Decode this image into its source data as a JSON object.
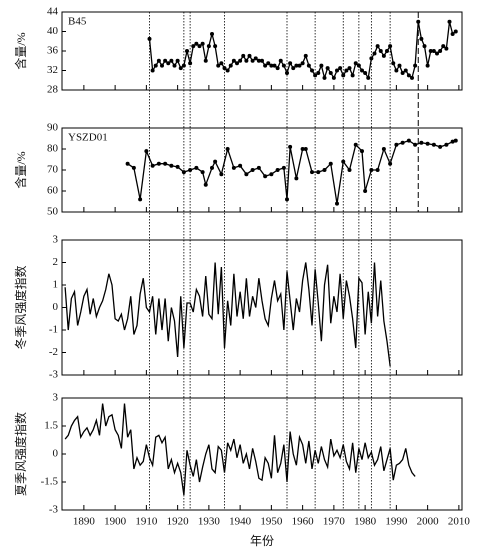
{
  "chart_data": [
    {
      "type": "line",
      "label": "B45",
      "ylabel": "含量/%",
      "markers": true,
      "color": "#000000",
      "ylim": [
        28,
        44
      ],
      "yticks": [
        28,
        32,
        36,
        40,
        44
      ],
      "xlim": [
        1883,
        2011
      ],
      "x": [
        1911,
        1912,
        1913,
        1914,
        1915,
        1916,
        1917,
        1918,
        1919,
        1920,
        1921,
        1922,
        1923,
        1924,
        1925,
        1926,
        1927,
        1928,
        1929,
        1930,
        1931,
        1932,
        1933,
        1934,
        1935,
        1936,
        1937,
        1938,
        1939,
        1940,
        1941,
        1942,
        1943,
        1944,
        1945,
        1946,
        1947,
        1948,
        1949,
        1950,
        1951,
        1952,
        1953,
        1954,
        1955,
        1956,
        1957,
        1958,
        1959,
        1960,
        1961,
        1962,
        1963,
        1964,
        1965,
        1966,
        1967,
        1968,
        1969,
        1970,
        1971,
        1972,
        1973,
        1974,
        1975,
        1976,
        1977,
        1978,
        1979,
        1980,
        1981,
        1982,
        1983,
        1984,
        1985,
        1986,
        1987,
        1988,
        1989,
        1990,
        1991,
        1992,
        1993,
        1994,
        1995,
        1996,
        1997,
        1998,
        1999,
        2000,
        2001,
        2002,
        2003,
        2004,
        2005,
        2006,
        2007,
        2008,
        2009
      ],
      "values": [
        38.5,
        32,
        33,
        34,
        33,
        34,
        33.5,
        34,
        33,
        34,
        32.5,
        33,
        36,
        33.5,
        37,
        37.5,
        37,
        37.5,
        34,
        37,
        39.5,
        37,
        33,
        33.5,
        32.5,
        32,
        33,
        34,
        33.5,
        34,
        35,
        34,
        35,
        34,
        34.5,
        34,
        34,
        33,
        33.5,
        33,
        33,
        32.5,
        34,
        33,
        31.5,
        33.5,
        32.5,
        33,
        33,
        33.5,
        35,
        33,
        32,
        31,
        31.5,
        33,
        30.5,
        32.5,
        31.5,
        30.5,
        32,
        32.5,
        31,
        32,
        32.5,
        31,
        33.5,
        33,
        32,
        31.5,
        30.5,
        34.5,
        35.5,
        37,
        36,
        35,
        36,
        37,
        33.5,
        32,
        33,
        31.5,
        32,
        31,
        30.5,
        33,
        42,
        38.5,
        37,
        33,
        36,
        36,
        35.5,
        36,
        37,
        36.5,
        42,
        39.5,
        40
      ]
    },
    {
      "type": "line",
      "label": "YSZD01",
      "ylabel": "含量/%",
      "markers": true,
      "color": "#000000",
      "ylim": [
        50,
        90
      ],
      "yticks": [
        50,
        60,
        70,
        80,
        90
      ],
      "xlim": [
        1883,
        2011
      ],
      "x": [
        1904,
        1906,
        1908,
        1910,
        1912,
        1914,
        1916,
        1918,
        1920,
        1922,
        1924,
        1926,
        1928,
        1929,
        1931,
        1932,
        1934,
        1936,
        1938,
        1940,
        1942,
        1944,
        1946,
        1948,
        1950,
        1952,
        1954,
        1955,
        1956,
        1958,
        1960,
        1961,
        1963,
        1965,
        1967,
        1969,
        1971,
        1973,
        1975,
        1977,
        1979,
        1980,
        1982,
        1984,
        1986,
        1988,
        1990,
        1992,
        1994,
        1996,
        1998,
        2000,
        2002,
        2004,
        2006,
        2008,
        2009
      ],
      "values": [
        73,
        71,
        56,
        79,
        72,
        73,
        73,
        72,
        71.5,
        69,
        70,
        71,
        69,
        63,
        71,
        74,
        68,
        80,
        71,
        72,
        68,
        70,
        71,
        67,
        68,
        70,
        71,
        56,
        81,
        66,
        80,
        80,
        69,
        69,
        70,
        73,
        54,
        74,
        70,
        82,
        79,
        60,
        70,
        70,
        80,
        73,
        82,
        83,
        84,
        82,
        83,
        82.5,
        82,
        81,
        82,
        83.5,
        84
      ]
    },
    {
      "type": "line",
      "ylabel": "冬季风强度指数",
      "markers": false,
      "color": "#000000",
      "ylim": [
        -3,
        3
      ],
      "yticks": [
        -3,
        -2,
        -1,
        0,
        1,
        2,
        3
      ],
      "xlim": [
        1883,
        2011
      ],
      "x": [
        1884,
        1885,
        1886,
        1887,
        1888,
        1889,
        1890,
        1891,
        1892,
        1893,
        1894,
        1895,
        1896,
        1897,
        1898,
        1899,
        1900,
        1901,
        1902,
        1903,
        1904,
        1905,
        1906,
        1907,
        1908,
        1909,
        1910,
        1911,
        1912,
        1913,
        1914,
        1915,
        1916,
        1917,
        1918,
        1919,
        1920,
        1921,
        1922,
        1923,
        1924,
        1925,
        1926,
        1927,
        1928,
        1929,
        1930,
        1931,
        1932,
        1933,
        1934,
        1935,
        1936,
        1937,
        1938,
        1939,
        1940,
        1941,
        1942,
        1943,
        1944,
        1945,
        1946,
        1947,
        1948,
        1949,
        1950,
        1951,
        1952,
        1953,
        1954,
        1955,
        1956,
        1957,
        1958,
        1959,
        1960,
        1961,
        1962,
        1963,
        1964,
        1965,
        1966,
        1967,
        1968,
        1969,
        1970,
        1971,
        1972,
        1973,
        1974,
        1975,
        1976,
        1977,
        1978,
        1979,
        1980,
        1981,
        1982,
        1983,
        1984,
        1985,
        1986,
        1987,
        1988
      ],
      "values": [
        0.9,
        -1.0,
        0.4,
        0.7,
        -0.8,
        -0.2,
        0.5,
        0.8,
        -0.3,
        0.4,
        -0.4,
        0,
        0.3,
        0.8,
        1.5,
        1.0,
        -0.5,
        -0.6,
        -0.3,
        -1.0,
        -0.5,
        0.5,
        -1.2,
        -0.8,
        0.6,
        1.3,
        0,
        -0.2,
        0.5,
        -1.2,
        0.4,
        -1.0,
        0.4,
        -1.5,
        0,
        -0.6,
        -2.2,
        0.5,
        -1.8,
        0.2,
        0.2,
        -0.2,
        0.8,
        0.5,
        -0.4,
        1.4,
        -0.3,
        -0.5,
        2.0,
        -0.3,
        1.8,
        -1.8,
        0.3,
        -0.8,
        1.5,
        -0.4,
        0.7,
        -0.5,
        1.3,
        -0.4,
        0.5,
        0,
        1.3,
        0.3,
        -0.5,
        -0.8,
        0.4,
        1.2,
        0.3,
        0.6,
        -1.0,
        1.6,
        0.3,
        -1.0,
        0.4,
        -0.2,
        1.2,
        2.0,
        0.8,
        -0.8,
        1.7,
        0.2,
        -1.5,
        1.0,
        1.9,
        -0.7,
        0.5,
        -0.2,
        1.5,
        -0.5,
        1.2,
        0.5,
        -0.5,
        -1.8,
        1.3,
        1.1,
        -1.2,
        0.7,
        -0.7,
        2.0,
        -0.4,
        1.2,
        -0.6,
        -1.5,
        -2.6
      ]
    },
    {
      "type": "line",
      "ylabel": "夏季风强度指数",
      "xlabel": "年份",
      "markers": false,
      "color": "#000000",
      "ylim": [
        -3,
        3
      ],
      "yticks": [
        -3,
        -1.5,
        0,
        1.5,
        3
      ],
      "xlim": [
        1883,
        2011
      ],
      "xticks": [
        1890,
        1900,
        1910,
        1920,
        1930,
        1940,
        1950,
        1960,
        1970,
        1980,
        1990,
        2000,
        2010
      ],
      "x": [
        1884,
        1885,
        1886,
        1887,
        1888,
        1889,
        1890,
        1891,
        1892,
        1893,
        1894,
        1895,
        1896,
        1897,
        1898,
        1899,
        1900,
        1901,
        1902,
        1903,
        1904,
        1905,
        1906,
        1907,
        1908,
        1909,
        1910,
        1911,
        1912,
        1913,
        1914,
        1915,
        1916,
        1917,
        1918,
        1919,
        1920,
        1921,
        1922,
        1923,
        1924,
        1925,
        1926,
        1927,
        1928,
        1929,
        1930,
        1931,
        1932,
        1933,
        1934,
        1935,
        1936,
        1937,
        1938,
        1939,
        1940,
        1941,
        1942,
        1943,
        1944,
        1945,
        1946,
        1947,
        1948,
        1949,
        1950,
        1951,
        1952,
        1953,
        1954,
        1955,
        1956,
        1957,
        1958,
        1959,
        1960,
        1961,
        1962,
        1963,
        1964,
        1965,
        1966,
        1967,
        1968,
        1969,
        1970,
        1971,
        1972,
        1973,
        1974,
        1975,
        1976,
        1977,
        1978,
        1979,
        1980,
        1981,
        1982,
        1983,
        1984,
        1985,
        1986,
        1987,
        1988,
        1989,
        1990,
        1991,
        1992,
        1993,
        1994,
        1995,
        1996
      ],
      "values": [
        0.8,
        1.0,
        1.5,
        1.8,
        2.0,
        0.9,
        1.2,
        1.4,
        1.0,
        1.3,
        1.8,
        1.0,
        2.7,
        1.5,
        2.0,
        2.1,
        1.3,
        1.0,
        0.3,
        2.7,
        0.9,
        1.3,
        -0.8,
        -0.2,
        -0.6,
        -0.4,
        0.5,
        -0.2,
        -0.6,
        0.9,
        1.0,
        0.6,
        0.9,
        -0.8,
        -0.3,
        -1.0,
        -0.5,
        -1.0,
        -2.2,
        0.2,
        -0.6,
        -1.2,
        -0.3,
        -1.5,
        -0.7,
        0,
        0.5,
        -0.8,
        -1.0,
        0.4,
        0.2,
        -1.0,
        0.6,
        0.2,
        0.8,
        -0.2,
        0.5,
        -0.5,
        0,
        -0.8,
        0.3,
        -0.4,
        -1.3,
        -1.4,
        -0.2,
        -0.5,
        -1.3,
        1.0,
        -1.0,
        -0.5,
        0.5,
        -1.5,
        1.2,
        0,
        -0.6,
        0.9,
        0.5,
        -0.5,
        0.7,
        -0.8,
        0.2,
        -0.5,
        0.4,
        -0.3,
        -0.7,
        0.8,
        -0.1,
        0.2,
        -0.2,
        0.5,
        -0.4,
        -0.8,
        0.6,
        -1.0,
        0.3,
        -0.3,
        0.6,
        -0.2,
        0.1,
        -0.6,
        -0.3,
        0.4,
        -0.9,
        -0.3,
        0.3,
        -1.4,
        -0.6,
        -0.5,
        -0.3,
        0.3,
        -0.6,
        -1.0,
        -1.2
      ]
    }
  ],
  "reference_lines": {
    "dotted": [
      1911,
      1922,
      1924,
      1935,
      1955,
      1964,
      1973,
      1978,
      1982,
      1988
    ],
    "dashed": [
      1997
    ]
  }
}
